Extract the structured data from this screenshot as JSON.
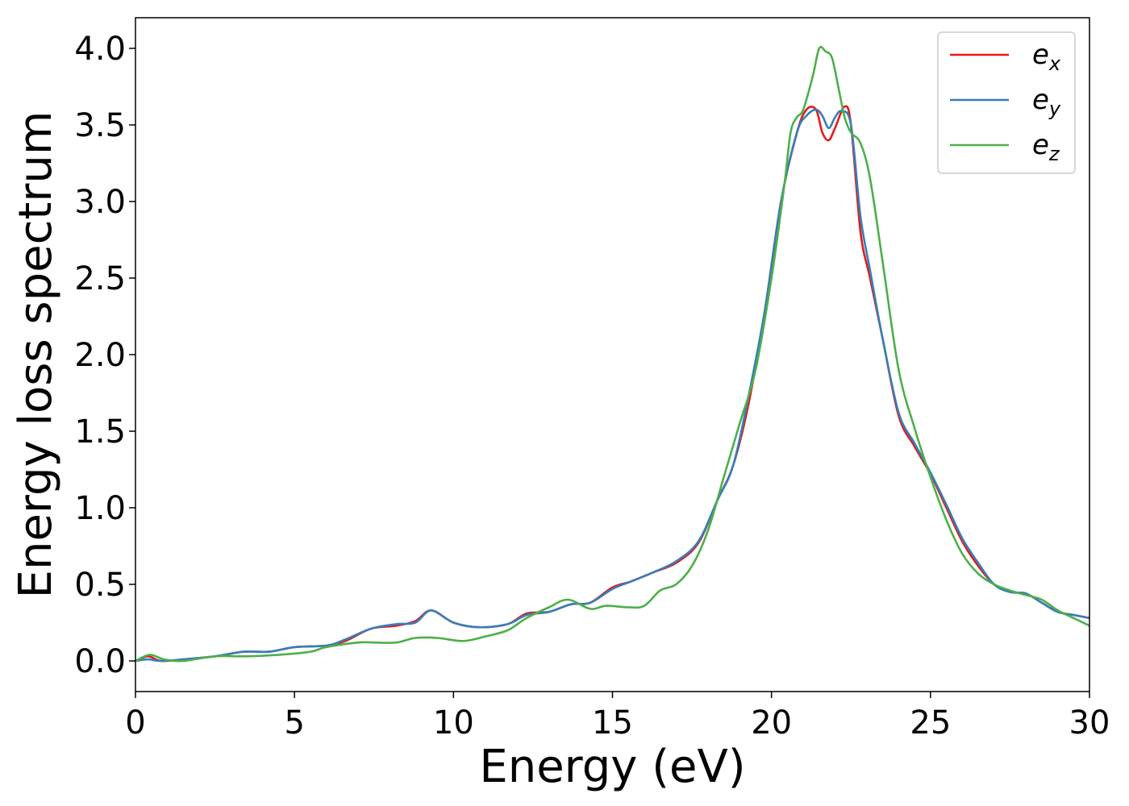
{
  "chart_data": {
    "type": "line",
    "xlabel": "Energy (eV)",
    "ylabel": "Energy loss spectrum",
    "xlim": [
      0,
      30
    ],
    "ylim": [
      -0.2,
      4.2
    ],
    "xticks": [
      0,
      5,
      10,
      15,
      20,
      25,
      30
    ],
    "xtick_labels": [
      "0",
      "5",
      "10",
      "15",
      "20",
      "25",
      "30"
    ],
    "yticks": [
      0.0,
      0.5,
      1.0,
      1.5,
      2.0,
      2.5,
      3.0,
      3.5,
      4.0
    ],
    "ytick_labels": [
      "0.0",
      "0.5",
      "1.0",
      "1.5",
      "2.0",
      "2.5",
      "3.0",
      "3.5",
      "4.0"
    ],
    "grid": false,
    "legend_position": "top-right",
    "series": [
      {
        "name": "e_x",
        "label_base": "e",
        "label_sub": "x",
        "color": "#e41a1c",
        "x": [
          0,
          0.4,
          0.8,
          1.5,
          2.5,
          3.4,
          4.2,
          5,
          6,
          6.6,
          7.4,
          8.2,
          8.8,
          9.3,
          10,
          10.8,
          11.7,
          12.3,
          13,
          13.7,
          14.3,
          15,
          15.6,
          16.3,
          17,
          17.7,
          18.3,
          18.8,
          19.3,
          19.8,
          20.3,
          20.8,
          21.1,
          21.4,
          21.6,
          21.8,
          22.0,
          22.3,
          22.5,
          22.8,
          23.1,
          23.5,
          24.0,
          24.5,
          25.0,
          25.5,
          26.0,
          26.5,
          27.0,
          27.5,
          28.0,
          28.5,
          29.0,
          29.5,
          30
        ],
        "values": [
          0.0,
          0.03,
          0.0,
          0.01,
          0.03,
          0.06,
          0.06,
          0.09,
          0.1,
          0.13,
          0.21,
          0.23,
          0.26,
          0.33,
          0.25,
          0.22,
          0.24,
          0.31,
          0.32,
          0.37,
          0.38,
          0.48,
          0.52,
          0.58,
          0.64,
          0.77,
          1.05,
          1.28,
          1.7,
          2.3,
          3.0,
          3.45,
          3.6,
          3.6,
          3.45,
          3.4,
          3.48,
          3.62,
          3.5,
          2.8,
          2.5,
          2.1,
          1.6,
          1.4,
          1.22,
          1.0,
          0.78,
          0.62,
          0.5,
          0.45,
          0.44,
          0.38,
          0.32,
          0.3,
          0.28
        ]
      },
      {
        "name": "e_y",
        "label_base": "e",
        "label_sub": "y",
        "color": "#377eb8",
        "x": [
          0,
          0.4,
          0.8,
          1.5,
          2.5,
          3.4,
          4.2,
          5,
          6,
          6.6,
          7.4,
          8.2,
          8.8,
          9.3,
          10,
          10.8,
          11.7,
          12.3,
          13,
          13.7,
          14.3,
          15,
          15.6,
          16.3,
          17,
          17.7,
          18.3,
          18.8,
          19.3,
          19.8,
          20.3,
          20.8,
          21.1,
          21.4,
          21.6,
          21.8,
          22.0,
          22.2,
          22.5,
          22.8,
          23.1,
          23.5,
          24.0,
          24.5,
          25.0,
          25.5,
          26.0,
          26.5,
          27.0,
          27.5,
          28.0,
          28.5,
          29.0,
          29.5,
          30
        ],
        "values": [
          0.0,
          0.01,
          0.0,
          0.01,
          0.03,
          0.06,
          0.06,
          0.09,
          0.1,
          0.14,
          0.21,
          0.24,
          0.25,
          0.33,
          0.25,
          0.22,
          0.24,
          0.3,
          0.32,
          0.37,
          0.38,
          0.47,
          0.52,
          0.58,
          0.65,
          0.78,
          1.05,
          1.28,
          1.75,
          2.3,
          3.0,
          3.45,
          3.56,
          3.6,
          3.56,
          3.48,
          3.55,
          3.59,
          3.5,
          2.9,
          2.55,
          2.1,
          1.62,
          1.42,
          1.23,
          1.02,
          0.8,
          0.64,
          0.5,
          0.45,
          0.44,
          0.38,
          0.32,
          0.3,
          0.28
        ]
      },
      {
        "name": "e_z",
        "label_base": "e",
        "label_sub": "z",
        "color": "#4daf4a",
        "x": [
          0,
          0.45,
          0.9,
          1.5,
          2.5,
          3.5,
          4.5,
          5.5,
          6,
          7,
          7.5,
          8.2,
          8.8,
          9.5,
          10.3,
          11,
          11.7,
          12.3,
          13,
          13.6,
          14.3,
          14.8,
          15.5,
          16,
          16.5,
          17,
          17.5,
          18,
          18.5,
          19,
          19.5,
          20,
          20.4,
          20.6,
          20.8,
          21.0,
          21.3,
          21.5,
          21.7,
          21.9,
          22.1,
          22.3,
          22.5,
          22.8,
          23.1,
          23.5,
          24.0,
          24.5,
          25.0,
          25.5,
          26.0,
          26.5,
          27.0,
          27.5,
          28.0,
          28.5,
          29.0,
          29.5,
          30
        ],
        "values": [
          0.0,
          0.04,
          0.01,
          0.0,
          0.03,
          0.03,
          0.04,
          0.06,
          0.09,
          0.12,
          0.12,
          0.12,
          0.15,
          0.15,
          0.13,
          0.16,
          0.2,
          0.28,
          0.35,
          0.4,
          0.34,
          0.36,
          0.35,
          0.36,
          0.46,
          0.5,
          0.62,
          0.85,
          1.2,
          1.55,
          1.9,
          2.5,
          3.1,
          3.45,
          3.55,
          3.6,
          3.82,
          4.0,
          3.98,
          3.94,
          3.75,
          3.55,
          3.45,
          3.38,
          3.15,
          2.6,
          1.9,
          1.52,
          1.2,
          0.92,
          0.7,
          0.57,
          0.5,
          0.46,
          0.43,
          0.4,
          0.33,
          0.28,
          0.23
        ]
      }
    ]
  }
}
